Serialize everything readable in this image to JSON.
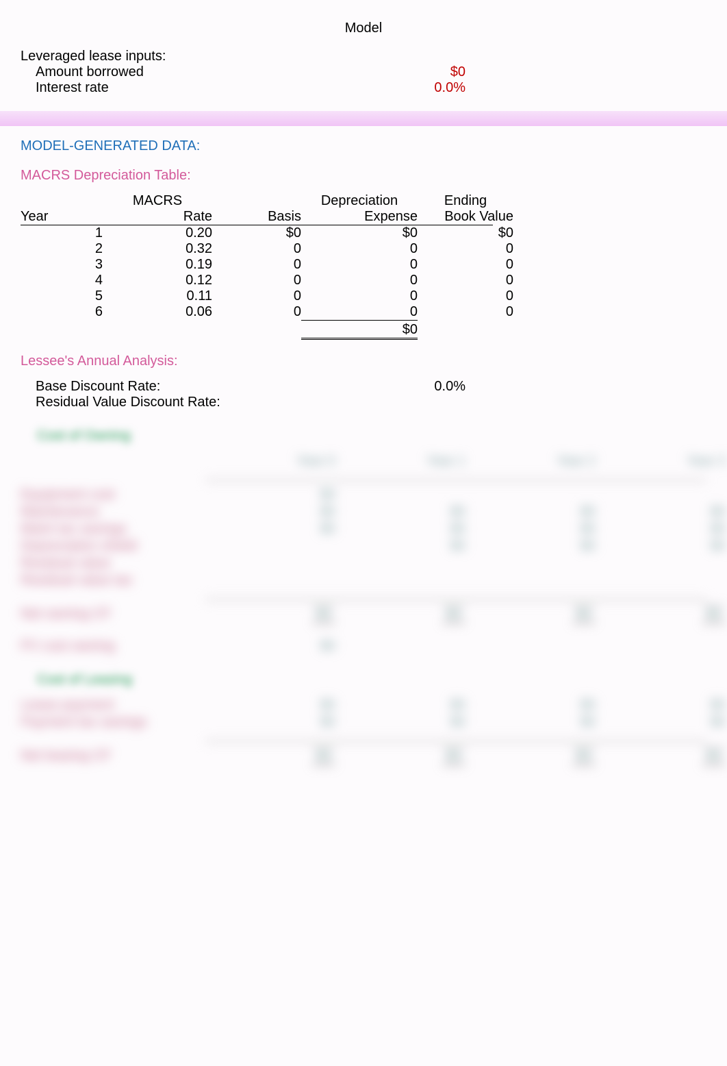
{
  "title": "Model",
  "inputs": {
    "header": "Leveraged lease inputs:",
    "amount_label": "Amount borrowed",
    "amount_value": "$0",
    "interest_label": "Interest rate",
    "interest_value": "0.0%"
  },
  "model_gen_header": "MODEL-GENERATED DATA:",
  "macrs": {
    "title": "MACRS Depreciation Table:",
    "columns": {
      "year": "Year",
      "macrs1": "MACRS",
      "macrs2": "Rate",
      "basis": "Basis",
      "dep1": "Depreciation",
      "dep2": "Expense",
      "end1": "Ending",
      "end2": "Book Value"
    },
    "rows": [
      {
        "year": "1",
        "rate": "0.20",
        "basis": "$0",
        "dep": "$0",
        "end": "$0"
      },
      {
        "year": "2",
        "rate": "0.32",
        "basis": "0",
        "dep": "0",
        "end": "0"
      },
      {
        "year": "3",
        "rate": "0.19",
        "basis": "0",
        "dep": "0",
        "end": "0"
      },
      {
        "year": "4",
        "rate": "0.12",
        "basis": "0",
        "dep": "0",
        "end": "0"
      },
      {
        "year": "5",
        "rate": "0.11",
        "basis": "0",
        "dep": "0",
        "end": "0"
      },
      {
        "year": "6",
        "rate": "0.06",
        "basis": "0",
        "dep": "0",
        "end": "0"
      }
    ],
    "total": "$0"
  },
  "lessee_header": "Lessee's Annual Analysis:",
  "rates": {
    "base_label": "Base Discount Rate:",
    "base_value": "0.0%",
    "resid_label": "Residual Value Discount Rate:",
    "resid_value": ""
  },
  "blur": {
    "owning_header": "Cost of Owning",
    "leasing_header": "Cost of Leasing",
    "year_headers": [
      "Year 0",
      "Year 1",
      "Year 2",
      "Year 3"
    ],
    "owning_rows": [
      "Equipment cost",
      "Maintenance",
      "Maint tax savings",
      "Depreciation shield",
      "Residual value",
      "Residual value tax"
    ],
    "net_owning": "Net owning CF",
    "pv_owning": "PV cost owning",
    "leasing_rows": [
      "Lease payment",
      "Payment tax savings"
    ],
    "net_leasing": "Net leasing CF",
    "placeholder": "$0"
  },
  "colors": {
    "input_value": "#c00000",
    "section_blue": "#1f6fb8",
    "section_pink": "#d35a9a",
    "blur_green": "#1a9850",
    "blur_label": "#c5708f",
    "background": "#fdfbfd"
  }
}
